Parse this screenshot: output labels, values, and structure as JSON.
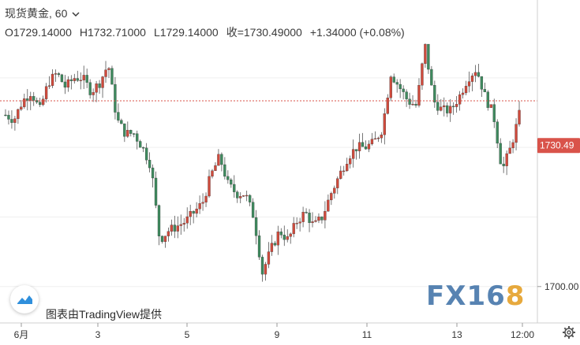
{
  "header": {
    "symbol": "现货黄金",
    "interval": "60",
    "open_label": "O1729.14000",
    "high_label": "H1732.71000",
    "low_label": "L1729.14000",
    "close_label": "收=1730.49000",
    "change_label": "+1.34000 (+0.08%)"
  },
  "credit": "图表由TradingView提供",
  "watermark": {
    "main": "FX16",
    "last": "8"
  },
  "colors": {
    "up": "#d04a3c",
    "down": "#3e8a5e",
    "price_tag": "#d9534a",
    "grid": "#efefef"
  },
  "icons": {
    "tv_logo": "tradingview-logo-icon",
    "settings": "gear-icon",
    "dropdown": "chevron-down-icon"
  },
  "chart_data": {
    "type": "candlestick",
    "instrument": "现货黄金",
    "timeframe": "60",
    "last_price": 1730.49,
    "last_price_label": "1730.49",
    "ylim": [
      1693,
      1755
    ],
    "y_ticks": [
      {
        "value": 1700,
        "label": "1700.00"
      }
    ],
    "x_ticks": [
      "6月",
      "3",
      "5",
      "9",
      "11",
      "13",
      "12:00"
    ],
    "close_path": [
      1737,
      1736,
      1740,
      1742,
      1738,
      1744,
      1746,
      1743,
      1745,
      1745,
      1742,
      1744,
      1748,
      1736,
      1733,
      1733,
      1730,
      1726,
      1710,
      1712,
      1713,
      1714,
      1716,
      1718,
      1724,
      1728,
      1722,
      1720,
      1720,
      1715,
      1703,
      1708,
      1712,
      1710,
      1714,
      1716,
      1713,
      1715,
      1720,
      1724,
      1728,
      1730,
      1730,
      1731,
      1734,
      1746,
      1743,
      1740,
      1739,
      1752,
      1740,
      1738,
      1738,
      1741,
      1745,
      1747,
      1741,
      1737,
      1725,
      1730,
      1737
    ]
  }
}
